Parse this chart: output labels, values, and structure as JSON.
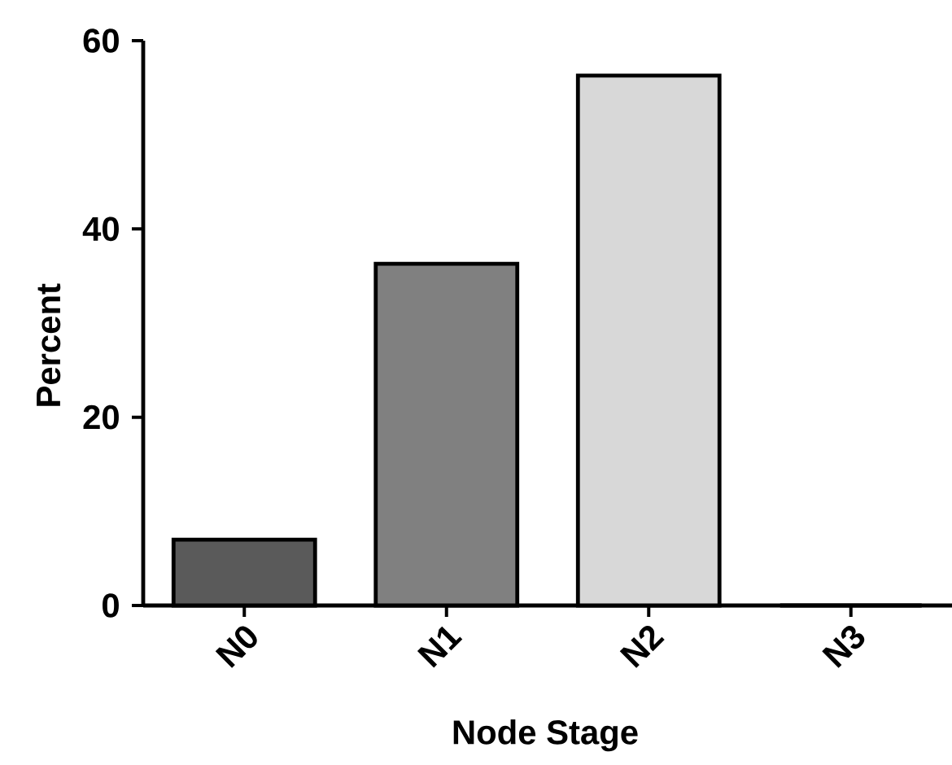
{
  "chart_data": {
    "type": "bar",
    "xlabel": "Node Stage",
    "ylabel": "Percent",
    "categories": [
      "N0",
      "N1",
      "N2",
      "N3"
    ],
    "values": [
      7.0,
      36.3,
      56.3,
      0
    ],
    "color": "#000000",
    "colors": [
      "#5a5a5a",
      "#808080",
      "#d8d8d8",
      "#ffffff"
    ],
    "ylim": [
      0,
      60
    ],
    "yticks": [
      0,
      20,
      40,
      60
    ]
  }
}
